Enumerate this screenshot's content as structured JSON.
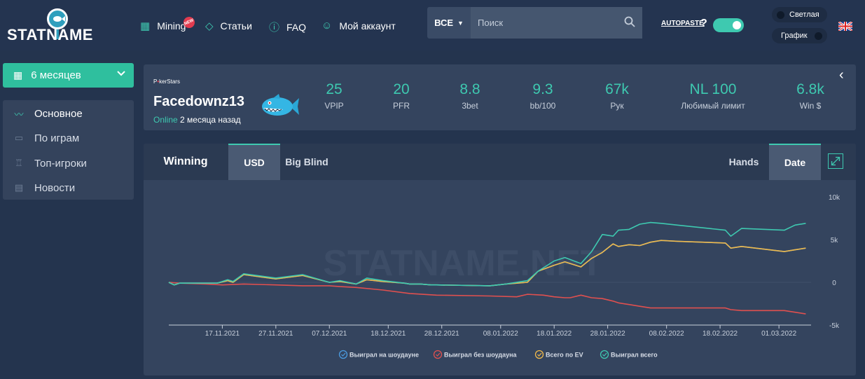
{
  "brand": {
    "logo_text": "STATNAME"
  },
  "nav": [
    {
      "label": "Mining",
      "icon": "calculator-icon",
      "badge": "NEW"
    },
    {
      "label": "Статьи",
      "icon": "diamond-icon"
    },
    {
      "label": "FAQ",
      "icon": "question-icon"
    },
    {
      "label": "Мой аккаунт",
      "icon": "user-icon"
    }
  ],
  "search": {
    "filter": "ВСЕ",
    "placeholder": "Поиск"
  },
  "autopaste": {
    "label": "AUTOPASTE",
    "help": "?",
    "enabled": true
  },
  "theme": {
    "light_label": "Светлая",
    "chart_label": "График"
  },
  "language_flag": "uk-flag-icon",
  "sidebar": {
    "period": "6 месяцев",
    "items": [
      {
        "label": "Основное",
        "icon": "pulse-icon",
        "active": true
      },
      {
        "label": "По играм",
        "icon": "gamepad-icon",
        "active": false
      },
      {
        "label": "Топ-игроки",
        "icon": "trophy-icon",
        "active": false
      },
      {
        "label": "Новости",
        "icon": "newspaper-icon",
        "active": false
      }
    ]
  },
  "profile": {
    "room_prefix": "P",
    "room_dot": "•",
    "room_suffix": "kerStars",
    "name": "Facedownz13",
    "status_online": "Online",
    "status_time": "2 месяца назад",
    "stats": [
      {
        "value": "25",
        "label": "VPIP"
      },
      {
        "value": "20",
        "label": "PFR"
      },
      {
        "value": "8.8",
        "label": "3bet"
      },
      {
        "value": "9.3",
        "label": "bb/100"
      },
      {
        "value": "67k",
        "label": "Рук"
      },
      {
        "value": "NL 100",
        "label": "Любимый лимит"
      },
      {
        "value": "6.8k",
        "label": "Win $"
      }
    ]
  },
  "chart_tabs": {
    "title": "Winning",
    "currency": [
      "USD",
      "Big Blind"
    ],
    "currency_selected": "USD",
    "axis_mode": [
      "Hands",
      "Date"
    ],
    "axis_mode_selected": "Date"
  },
  "colors": {
    "accent": "#3ec9b0",
    "showdown": "#4a9be0",
    "non_showdown": "#e0504f",
    "ev": "#f0b94a",
    "total": "#3ec9b0"
  },
  "chart_data": {
    "type": "line",
    "watermark": "STATNAME.NET",
    "x_ticks": [
      "17.11.2021",
      "27.11.2021",
      "07.12.2021",
      "18.12.2021",
      "28.12.2021",
      "08.01.2022",
      "18.01.2022",
      "28.01.2022",
      "08.02.2022",
      "18.02.2022",
      "01.03.2022"
    ],
    "y_ticks": [
      "10k",
      "5k",
      "0",
      "-5k"
    ],
    "ylim": [
      -5000,
      10000
    ],
    "xlim_days": [
      0,
      120
    ],
    "x_start": "2021-11-07",
    "series": [
      {
        "name": "Выиграл на шоудауне",
        "color": "#4a9be0",
        "x": [
          0,
          1,
          2,
          7,
          9,
          11,
          12,
          14,
          20,
          25,
          30,
          32,
          35,
          37,
          40,
          44,
          45,
          47,
          49,
          50,
          60,
          63,
          67,
          69,
          72,
          74,
          77,
          79,
          81,
          83,
          84,
          86,
          88,
          90,
          92,
          95,
          104,
          105,
          107,
          115,
          117,
          119
        ],
        "y": [
          0,
          -300,
          -100,
          -100,
          -100,
          200,
          0,
          900,
          400,
          800,
          0,
          100,
          -200,
          300,
          100,
          -100,
          -200,
          -200,
          -300,
          -300,
          -400,
          -200,
          0,
          1300,
          2000,
          2400,
          1800,
          2800,
          3500,
          4500,
          4200,
          4400,
          4300,
          4700,
          4900,
          4800,
          4600,
          4000,
          4200,
          3600,
          3800,
          4000
        ]
      },
      {
        "name": "Выиграл без шоудауна",
        "color": "#e0504f",
        "x": [
          0,
          2,
          7,
          10,
          14,
          20,
          25,
          30,
          32,
          35,
          40,
          45,
          50,
          60,
          65,
          67,
          70,
          72,
          74,
          75,
          77,
          79,
          81,
          83,
          84,
          86,
          88,
          90,
          92,
          95,
          104,
          105,
          107,
          115,
          117,
          119
        ],
        "y": [
          0,
          -100,
          -200,
          -300,
          -200,
          -300,
          -400,
          -400,
          -500,
          -600,
          -900,
          -1300,
          -1500,
          -1600,
          -1700,
          -1400,
          -1500,
          -1700,
          -1800,
          -1800,
          -1500,
          -1800,
          -1900,
          -2200,
          -2400,
          -2600,
          -2800,
          -3000,
          -3000,
          -3000,
          -3000,
          -3200,
          -3300,
          -3300,
          -3500,
          -3700
        ]
      },
      {
        "name": "Всего по EV",
        "color": "#f0b94a",
        "x": [
          0,
          1,
          2,
          7,
          9,
          11,
          12,
          14,
          20,
          25,
          30,
          32,
          35,
          37,
          40,
          44,
          45,
          47,
          49,
          50,
          60,
          63,
          67,
          69,
          72,
          74,
          77,
          79,
          81,
          83,
          84,
          86,
          88,
          90,
          92,
          95,
          104,
          105,
          107,
          115,
          117,
          119
        ],
        "y": [
          0,
          -300,
          -100,
          -100,
          -100,
          200,
          0,
          900,
          400,
          800,
          0,
          100,
          -200,
          300,
          100,
          -100,
          -200,
          -200,
          -300,
          -300,
          -400,
          -200,
          0,
          1300,
          2000,
          2400,
          1800,
          2800,
          3500,
          4500,
          4200,
          4400,
          4300,
          4700,
          4900,
          4800,
          4600,
          4000,
          4200,
          3600,
          3800,
          4000
        ]
      },
      {
        "name": "Выиграл всего",
        "color": "#3ec9b0",
        "x": [
          0,
          1,
          2,
          7,
          9,
          11,
          12,
          14,
          20,
          25,
          30,
          32,
          35,
          37,
          40,
          44,
          45,
          47,
          49,
          50,
          60,
          63,
          67,
          69,
          72,
          74,
          77,
          79,
          81,
          83,
          84,
          86,
          88,
          90,
          92,
          95,
          104,
          105,
          107,
          115,
          117,
          119
        ],
        "y": [
          0,
          -300,
          -100,
          -100,
          -100,
          300,
          100,
          1000,
          500,
          900,
          0,
          200,
          -200,
          500,
          200,
          -100,
          -200,
          -200,
          -300,
          -300,
          -400,
          -200,
          200,
          1300,
          2500,
          2900,
          2200,
          3600,
          5600,
          5400,
          6100,
          6200,
          6800,
          7000,
          6900,
          6700,
          6100,
          5400,
          6300,
          6100,
          6700,
          6900
        ]
      }
    ],
    "legend": [
      "Выиграл на шоудауне",
      "Выиграл без шоудауна",
      "Всего по EV",
      "Выиграл всего"
    ],
    "legend_position": "bottom",
    "grid": true
  }
}
